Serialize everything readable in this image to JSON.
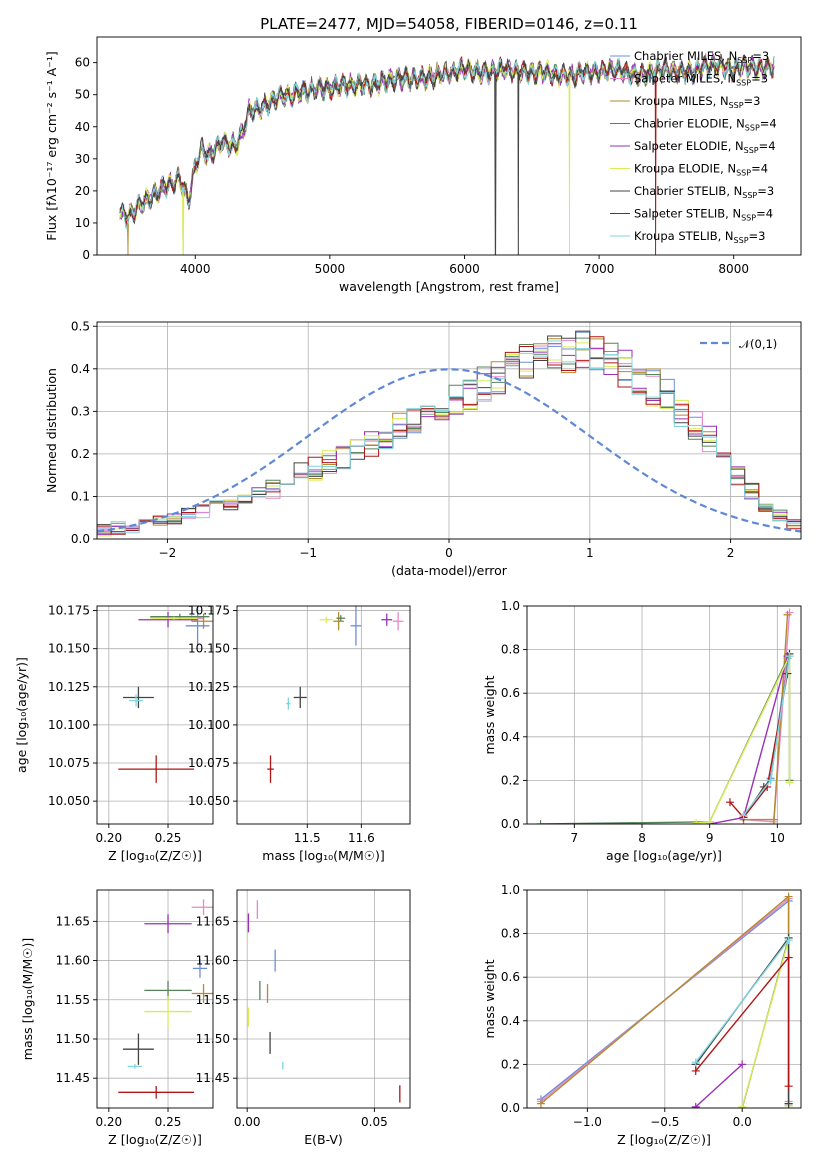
{
  "figure_title": "PLATE=2477, MJD=54058, FIBERID=0146, z=0.11",
  "colors": {
    "Chabrier MILES": "#6a8fd8",
    "Salpeter MILES": "#e887c9",
    "Kroupa MILES": "#b38a2e",
    "Chabrier ELODIE": "#55835a",
    "Salpeter ELODIE": "#9a30b8",
    "Kroupa ELODIE": "#d9ec55",
    "Chabrier STELIB": "#444444",
    "Salpeter STELIB": "#b01515",
    "Kroupa STELIB": "#80d6e0",
    "normal": "#5f88d6",
    "orange": "#ee7d2a"
  },
  "chart_data": [
    {
      "type": "line",
      "title": "PLATE=2477, MJD=54058, FIBERID=0146, z=0.11",
      "xlabel": "wavelength [Angstrom, rest frame]",
      "ylabel": "Flux [fλ10⁻¹⁷ erg cm⁻² s⁻¹ A⁻¹]",
      "xlim": [
        3270,
        8500
      ],
      "ylim": [
        0,
        68
      ],
      "xticks": [
        "4000",
        "5000",
        "6000",
        "7000",
        "8000"
      ],
      "yticks": [
        "0",
        "10",
        "20",
        "30",
        "40",
        "50",
        "60"
      ],
      "grid": false,
      "legend_position": "right",
      "envelope": {
        "x": [
          3440,
          3500,
          3600,
          3700,
          3800,
          3880,
          3950,
          4000,
          4050,
          4100,
          4200,
          4300,
          4350,
          4400,
          4500,
          4600,
          4700,
          4800,
          4900,
          5000,
          5100,
          5200,
          5300,
          5400,
          5500,
          5600,
          5700,
          5800,
          5900,
          6000,
          6100,
          6200,
          6300,
          6400,
          6500,
          6600,
          6700,
          6800,
          6900,
          7000,
          7100,
          7200,
          7300,
          7400,
          7500,
          7600,
          7700,
          7800,
          7900,
          8000,
          8100,
          8200,
          8300
        ],
        "y": [
          13,
          12,
          16,
          19,
          22,
          24,
          17,
          28,
          33,
          31,
          35,
          34,
          38,
          45,
          46,
          49,
          50,
          51,
          52,
          52,
          53,
          53,
          53,
          54,
          55,
          55,
          55,
          56,
          57,
          58,
          57,
          57,
          58,
          57,
          57,
          57,
          56,
          56,
          57,
          57,
          58,
          57,
          56,
          57,
          58,
          57,
          57,
          59,
          59,
          58,
          59,
          58,
          59
        ]
      },
      "series": [
        {
          "name": "Chabrier MILES, N_SSP=3"
        },
        {
          "name": "Salpeter MILES, N_SSP=3"
        },
        {
          "name": "Kroupa MILES, N_SSP=3"
        },
        {
          "name": "Chabrier ELODIE, N_SSP=4"
        },
        {
          "name": "Salpeter ELODIE, N_SSP=4"
        },
        {
          "name": "Kroupa ELODIE, N_SSP=4"
        },
        {
          "name": "Chabrier STELIB, N_SSP=3"
        },
        {
          "name": "Salpeter STELIB, N_SSP=4"
        },
        {
          "name": "Kroupa STELIB, N_SSP=3"
        }
      ],
      "spikes": [
        {
          "series": "Kroupa MILES",
          "x": 3500
        },
        {
          "series": "Kroupa ELODIE",
          "x": 3910
        },
        {
          "series": "Chabrier STELIB",
          "x": 6230
        },
        {
          "series": "Chabrier STELIB",
          "x": 6400
        },
        {
          "series": "Kroupa ELODIE",
          "x": 6780
        },
        {
          "series": "Salpeter STELIB",
          "x": 7420
        }
      ]
    },
    {
      "type": "bar",
      "subtype": "step histogram",
      "xlabel": "(data-model)/error",
      "ylabel": "Normed distribution",
      "xlim": [
        -2.5,
        2.5
      ],
      "ylim": [
        0,
        0.51
      ],
      "xticks": [
        "−2",
        "−1",
        "0",
        "1",
        "2"
      ],
      "yticks": [
        "0.0",
        "0.1",
        "0.2",
        "0.3",
        "0.4",
        "0.5"
      ],
      "grid": true,
      "legend": [
        "𝒩(0,1)"
      ],
      "legend_position": "top-right",
      "bins": {
        "start": -2.5,
        "width": 0.1,
        "count": 50
      },
      "base_values": [
        0.02,
        0.025,
        0.03,
        0.035,
        0.04,
        0.045,
        0.055,
        0.065,
        0.075,
        0.085,
        0.095,
        0.11,
        0.12,
        0.135,
        0.15,
        0.165,
        0.18,
        0.195,
        0.21,
        0.225,
        0.24,
        0.255,
        0.27,
        0.29,
        0.305,
        0.32,
        0.34,
        0.36,
        0.38,
        0.395,
        0.41,
        0.42,
        0.43,
        0.435,
        0.44,
        0.435,
        0.42,
        0.4,
        0.38,
        0.355,
        0.33,
        0.3,
        0.27,
        0.23,
        0.19,
        0.15,
        0.11,
        0.08,
        0.055,
        0.035
      ],
      "curve": {
        "name": "𝒩(0,1)",
        "mu": 0,
        "sigma": 1
      }
    },
    {
      "type": "scatter",
      "subtype": "error bars",
      "xlabel": "Z [log₁₀(Z/Z☉)]",
      "ylabel": "age  [log₁₀(age/yr)]",
      "xlim": [
        0.19,
        0.288
      ],
      "ylim": [
        10.035,
        10.178
      ],
      "xticks": [
        "0.20",
        "0.25"
      ],
      "xtick_values": [
        0.2,
        0.25
      ],
      "yticks": [
        "10.050",
        "10.075",
        "10.100",
        "10.125",
        "10.150",
        "10.175"
      ],
      "ytick_values": [
        10.05,
        10.075,
        10.1,
        10.125,
        10.15,
        10.175
      ],
      "grid": true,
      "points": [
        {
          "series": "Chabrier MILES",
          "x": 0.275,
          "y": 10.165,
          "xerr": 0.01,
          "yerr": 0.013
        },
        {
          "series": "Salpeter MILES",
          "x": 0.27,
          "y": 10.17,
          "xerr": 0.01,
          "yerr": 0.002
        },
        {
          "series": "Kroupa MILES",
          "x": 0.28,
          "y": 10.168,
          "xerr": 0.01,
          "yerr": 0.005
        },
        {
          "series": "Chabrier ELODIE",
          "x": 0.26,
          "y": 10.171,
          "xerr": 0.025,
          "yerr": 0.002
        },
        {
          "series": "Salpeter ELODIE",
          "x": 0.25,
          "y": 10.169,
          "xerr": 0.025,
          "yerr": 0.005
        },
        {
          "series": "Kroupa ELODIE",
          "x": 0.255,
          "y": 10.17,
          "xerr": 0.02,
          "yerr": 0.001
        },
        {
          "series": "Chabrier STELIB",
          "x": 0.225,
          "y": 10.118,
          "xerr": 0.013,
          "yerr": 0.007
        },
        {
          "series": "Salpeter STELIB",
          "x": 0.24,
          "y": 10.071,
          "xerr": 0.032,
          "yerr": 0.009
        },
        {
          "series": "Kroupa STELIB",
          "x": 0.223,
          "y": 10.116,
          "xerr": 0.006,
          "yerr": 0.004
        }
      ]
    },
    {
      "type": "scatter",
      "subtype": "error bars",
      "xlabel": "mass [log₁₀(M/M☉)]",
      "ylabel": "",
      "xlim": [
        11.37,
        11.69
      ],
      "ylim": [
        10.035,
        10.178
      ],
      "xticks": [
        "11.5",
        "11.6"
      ],
      "xtick_values": [
        11.5,
        11.6
      ],
      "yticks": [
        "10.050",
        "10.075",
        "10.100",
        "10.125",
        "10.150",
        "10.175"
      ],
      "ytick_values": [
        10.05,
        10.075,
        10.1,
        10.125,
        10.15,
        10.175
      ],
      "grid": true,
      "points": [
        {
          "series": "Chabrier MILES",
          "x": 11.59,
          "y": 10.165,
          "xerr": 0.01,
          "yerr": 0.013
        },
        {
          "series": "Salpeter MILES",
          "x": 11.668,
          "y": 10.168,
          "xerr": 0.01,
          "yerr": 0.006
        },
        {
          "series": "Kroupa MILES",
          "x": 11.558,
          "y": 10.168,
          "xerr": 0.01,
          "yerr": 0.006
        },
        {
          "series": "Chabrier ELODIE",
          "x": 11.562,
          "y": 10.17,
          "xerr": 0.008,
          "yerr": 0.002
        },
        {
          "series": "Salpeter ELODIE",
          "x": 11.647,
          "y": 10.169,
          "xerr": 0.01,
          "yerr": 0.004
        },
        {
          "series": "Kroupa ELODIE",
          "x": 11.535,
          "y": 10.169,
          "xerr": 0.012,
          "yerr": 0.002
        },
        {
          "series": "Chabrier STELIB",
          "x": 11.487,
          "y": 10.118,
          "xerr": 0.012,
          "yerr": 0.007
        },
        {
          "series": "Salpeter STELIB",
          "x": 11.432,
          "y": 10.071,
          "xerr": 0.006,
          "yerr": 0.009
        },
        {
          "series": "Kroupa STELIB",
          "x": 11.465,
          "y": 10.114,
          "xerr": 0.004,
          "yerr": 0.004
        }
      ]
    },
    {
      "type": "line",
      "xlabel": "age  [log₁₀(age/yr)]",
      "ylabel": "mass weight",
      "xlim": [
        6.3,
        10.35
      ],
      "ylim": [
        0,
        1
      ],
      "xticks": [
        "7",
        "8",
        "9",
        "10"
      ],
      "xtick_values": [
        7,
        8,
        9,
        10
      ],
      "yticks": [
        "0.0",
        "0.2",
        "0.4",
        "0.6",
        "0.8",
        "1.0"
      ],
      "ytick_values": [
        0,
        0.2,
        0.4,
        0.6,
        0.8,
        1.0
      ],
      "grid": true,
      "series": [
        {
          "series": "Chabrier MILES",
          "x": [
            9.5,
            9.9,
            10.15
          ],
          "y": [
            0.03,
            0.21,
            0.76
          ]
        },
        {
          "series": "Salpeter MILES",
          "x": [
            9.5,
            9.95,
            10.18
          ],
          "y": [
            0.02,
            0.01,
            0.97
          ]
        },
        {
          "series": "Kroupa MILES",
          "x": [
            9.5,
            9.95,
            10.15
          ],
          "y": [
            0.02,
            0.02,
            0.96
          ]
        },
        {
          "series": "Chabrier ELODIE",
          "x": [
            6.5,
            9.0,
            10.18,
            10.18
          ],
          "y": [
            0.0,
            0.01,
            0.78,
            0.2
          ]
        },
        {
          "series": "Salpeter ELODIE",
          "x": [
            9.0,
            9.5,
            10.15
          ],
          "y": [
            0.0,
            0.03,
            0.77
          ]
        },
        {
          "series": "Kroupa ELODIE",
          "x": [
            8.8,
            9.0,
            10.18,
            10.18
          ],
          "y": [
            0.005,
            0.01,
            0.77,
            0.19
          ]
        },
        {
          "series": "Chabrier STELIB",
          "x": [
            9.5,
            9.8,
            9.9,
            10.18
          ],
          "y": [
            0.03,
            0.17,
            0.2,
            0.78
          ]
        },
        {
          "series": "Salpeter STELIB",
          "x": [
            9.3,
            9.5,
            9.85,
            10.15
          ],
          "y": [
            0.1,
            0.03,
            0.17,
            0.69
          ]
        },
        {
          "series": "Kroupa STELIB",
          "x": [
            9.5,
            9.9,
            10.18
          ],
          "y": [
            0.04,
            0.2,
            0.77
          ]
        }
      ]
    },
    {
      "type": "scatter",
      "subtype": "error bars",
      "xlabel": "Z [log₁₀(Z/Z☉)]",
      "ylabel": "mass [log₁₀(M/M☉)]",
      "xlim": [
        0.19,
        0.288
      ],
      "ylim": [
        11.412,
        11.69
      ],
      "xticks": [
        "0.20",
        "0.25"
      ],
      "xtick_values": [
        0.2,
        0.25
      ],
      "yticks": [
        "11.45",
        "11.50",
        "11.55",
        "11.60",
        "11.65"
      ],
      "ytick_values": [
        11.45,
        11.5,
        11.55,
        11.6,
        11.65
      ],
      "grid": true,
      "points": [
        {
          "series": "Chabrier MILES",
          "x": 0.277,
          "y": 11.59,
          "xerr": 0.006,
          "yerr": 0.012
        },
        {
          "series": "Salpeter MILES",
          "x": 0.28,
          "y": 11.668,
          "xerr": 0.01,
          "yerr": 0.01
        },
        {
          "series": "Kroupa MILES",
          "x": 0.28,
          "y": 11.558,
          "xerr": 0.01,
          "yerr": 0.012
        },
        {
          "series": "Chabrier ELODIE",
          "x": 0.25,
          "y": 11.562,
          "xerr": 0.02,
          "yerr": 0.012
        },
        {
          "series": "Salpeter ELODIE",
          "x": 0.25,
          "y": 11.647,
          "xerr": 0.02,
          "yerr": 0.012
        },
        {
          "series": "Kroupa ELODIE",
          "x": 0.25,
          "y": 11.535,
          "xerr": 0.02,
          "yerr": 0.02
        },
        {
          "series": "Chabrier STELIB",
          "x": 0.225,
          "y": 11.487,
          "xerr": 0.013,
          "yerr": 0.02
        },
        {
          "series": "Salpeter STELIB",
          "x": 0.24,
          "y": 11.432,
          "xerr": 0.032,
          "yerr": 0.008
        },
        {
          "series": "Kroupa STELIB",
          "x": 0.222,
          "y": 11.465,
          "xerr": 0.006,
          "yerr": 0.003
        }
      ]
    },
    {
      "type": "scatter",
      "subtype": "error bars",
      "xlabel": "E(B-V)",
      "ylabel": "",
      "xlim": [
        -0.004,
        0.064
      ],
      "ylim": [
        11.412,
        11.69
      ],
      "xticks": [
        "0.00",
        "0.05"
      ],
      "xtick_values": [
        0,
        0.05
      ],
      "yticks": [
        "11.45",
        "11.50",
        "11.55",
        "11.60",
        "11.65"
      ],
      "ytick_values": [
        11.45,
        11.5,
        11.55,
        11.6,
        11.65
      ],
      "grid": true,
      "points": [
        {
          "series": "Chabrier MILES",
          "x": 0.011,
          "y": 11.6,
          "xerr": 0,
          "yerr": 0.014
        },
        {
          "series": "Salpeter MILES",
          "x": 0.004,
          "y": 11.665,
          "xerr": 0,
          "yerr": 0.012
        },
        {
          "series": "Kroupa MILES",
          "x": 0.008,
          "y": 11.558,
          "xerr": 0,
          "yerr": 0.012
        },
        {
          "series": "Chabrier ELODIE",
          "x": 0.005,
          "y": 11.562,
          "xerr": 0,
          "yerr": 0.012
        },
        {
          "series": "Salpeter ELODIE",
          "x": 0.0005,
          "y": 11.648,
          "xerr": 0,
          "yerr": 0.012
        },
        {
          "series": "Kroupa ELODIE",
          "x": 0.0005,
          "y": 11.528,
          "xerr": 0,
          "yerr": 0.012
        },
        {
          "series": "Chabrier STELIB",
          "x": 0.009,
          "y": 11.495,
          "xerr": 0,
          "yerr": 0.014
        },
        {
          "series": "Salpeter STELIB",
          "x": 0.06,
          "y": 11.43,
          "xerr": 0,
          "yerr": 0.011
        },
        {
          "series": "Kroupa STELIB",
          "x": 0.014,
          "y": 11.466,
          "xerr": 0,
          "yerr": 0.005
        }
      ]
    },
    {
      "type": "line",
      "xlabel": "Z [log₁₀(Z/Z☉)]",
      "ylabel": "mass weight",
      "xlim": [
        -1.39,
        0.38
      ],
      "ylim": [
        0,
        1
      ],
      "xticks": [
        "−1.0",
        "−0.5",
        "0.0"
      ],
      "xtick_values": [
        -1.0,
        -0.5,
        0.0
      ],
      "yticks": [
        "0.0",
        "0.2",
        "0.4",
        "0.6",
        "0.8",
        "1.0"
      ],
      "ytick_values": [
        0,
        0.2,
        0.4,
        0.6,
        0.8,
        1.0
      ],
      "grid": true,
      "series": [
        {
          "series": "Chabrier MILES",
          "x": [
            -1.3,
            0.3,
            0.3
          ],
          "y": [
            0.04,
            0.95,
            0.02
          ]
        },
        {
          "series": "Salpeter MILES",
          "x": [
            -1.3,
            0.3,
            0.3
          ],
          "y": [
            0.03,
            0.96,
            0.03
          ]
        },
        {
          "series": "Kroupa MILES",
          "x": [
            -1.3,
            0.3,
            0.3
          ],
          "y": [
            0.02,
            0.97,
            0.01
          ]
        },
        {
          "series": "Chabrier ELODIE",
          "x": [
            0.0,
            0.3,
            0.3
          ],
          "y": [
            0.0,
            0.78,
            0.02
          ]
        },
        {
          "series": "Salpeter ELODIE",
          "x": [
            -0.3,
            0.0
          ],
          "y": [
            0.005,
            0.2
          ]
        },
        {
          "series": "Kroupa ELODIE",
          "x": [
            0.0,
            0.3,
            0.3
          ],
          "y": [
            0.005,
            0.77,
            0.01
          ]
        },
        {
          "series": "Chabrier STELIB",
          "x": [
            -0.3,
            0.3,
            0.3
          ],
          "y": [
            0.2,
            0.78,
            0.02
          ]
        },
        {
          "series": "Salpeter STELIB",
          "x": [
            -0.3,
            0.3,
            0.3
          ],
          "y": [
            0.17,
            0.69,
            0.1
          ]
        },
        {
          "series": "Kroupa STELIB",
          "x": [
            -0.3,
            0.3
          ],
          "y": [
            0.21,
            0.77
          ]
        }
      ]
    }
  ]
}
